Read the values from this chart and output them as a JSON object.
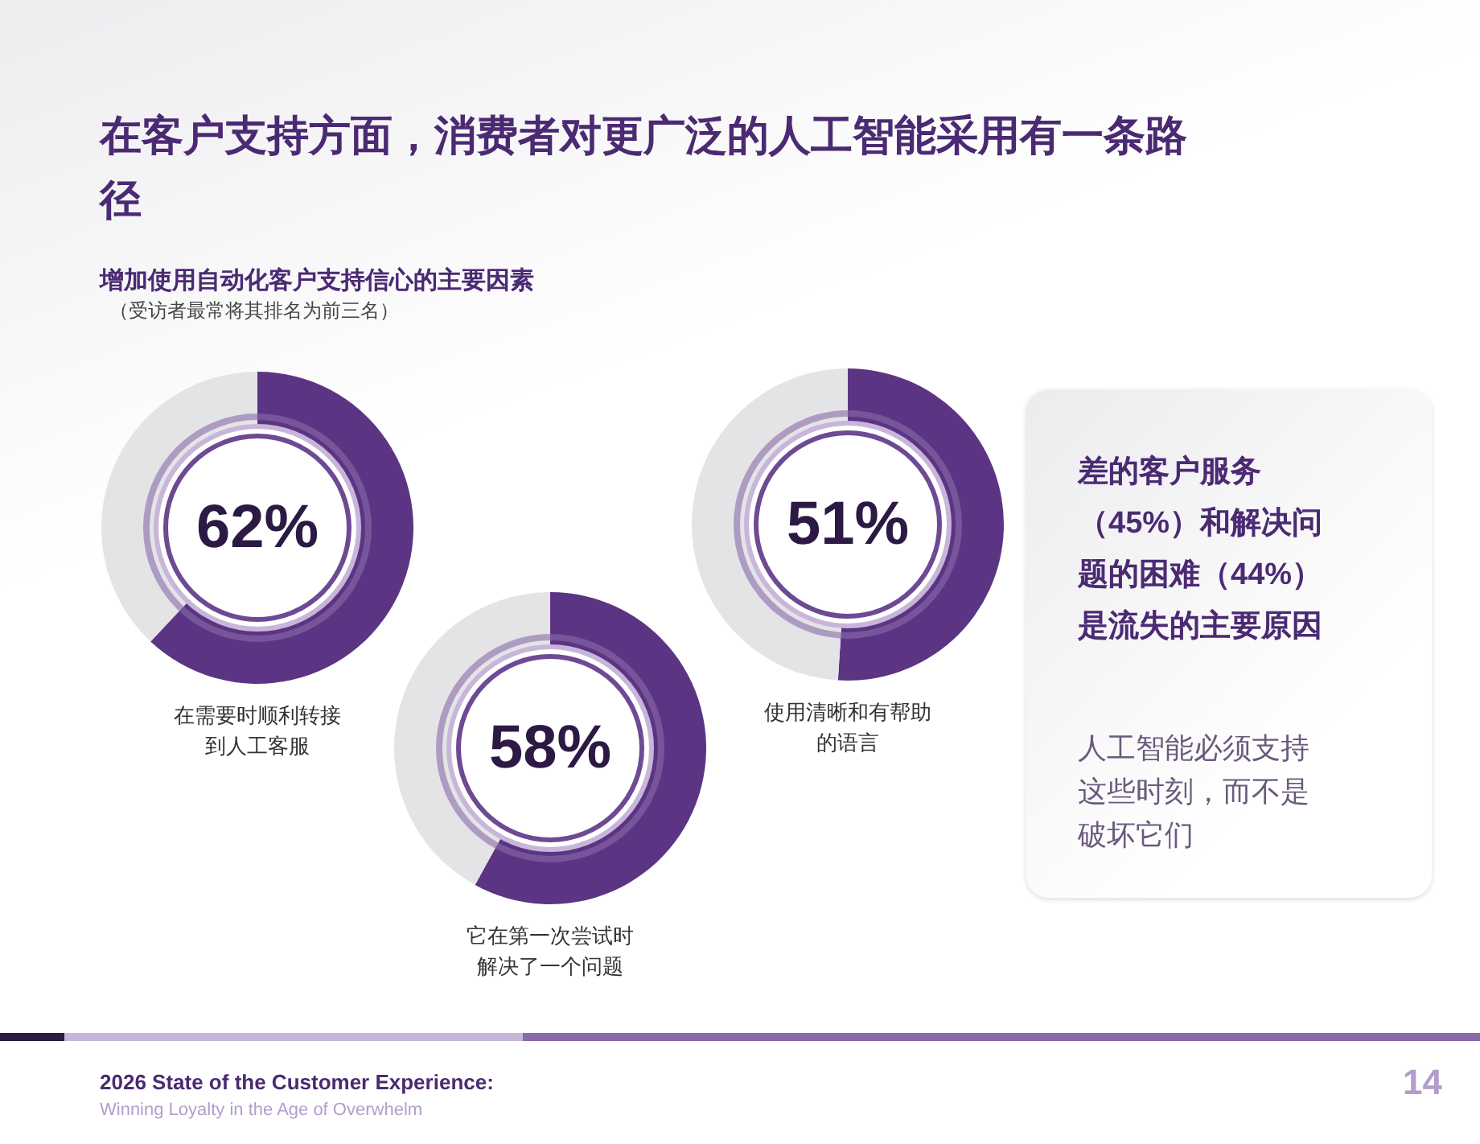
{
  "chart_data": [
    {
      "type": "donut",
      "title": "在客户支持方面，消费者对更广泛的人工智能采用有一条路径",
      "subtitle": "增加使用自动化客户支持信心的主要因素",
      "categories": [
        "在需要时顺利转接到人工客服",
        null
      ],
      "values": [
        62,
        38
      ],
      "colors": [
        "#5b3584",
        "#e4e4e7"
      ],
      "annotations": [
        "（受访者最常将其排名为前三名）",
        "2026 State of the Customer Experience:",
        "Winning Loyalty in the Age of Overwhelm",
        "14",
        "62%"
      ]
    },
    {
      "type": "donut",
      "categories": [
        "它在第一次尝试时解决了一个问题",
        null
      ],
      "values": [
        58,
        42
      ],
      "colors": [
        "#5b3584",
        "#e4e4e7"
      ],
      "annotations": [
        "58%"
      ]
    },
    {
      "type": "donut",
      "categories": [
        "使用清晰和有帮助的语言",
        null
      ],
      "values": [
        51,
        49
      ],
      "colors": [
        "#5b3584",
        "#e4e4e7"
      ],
      "annotations": [
        "51%"
      ]
    },
    {
      "type": "other",
      "title": "差的客户服务（45%）和解决问题的困难（44%）是流失的主要原因",
      "subtitle": "人工智能必须支持这些时刻，而不是破坏它们"
    }
  ]
}
